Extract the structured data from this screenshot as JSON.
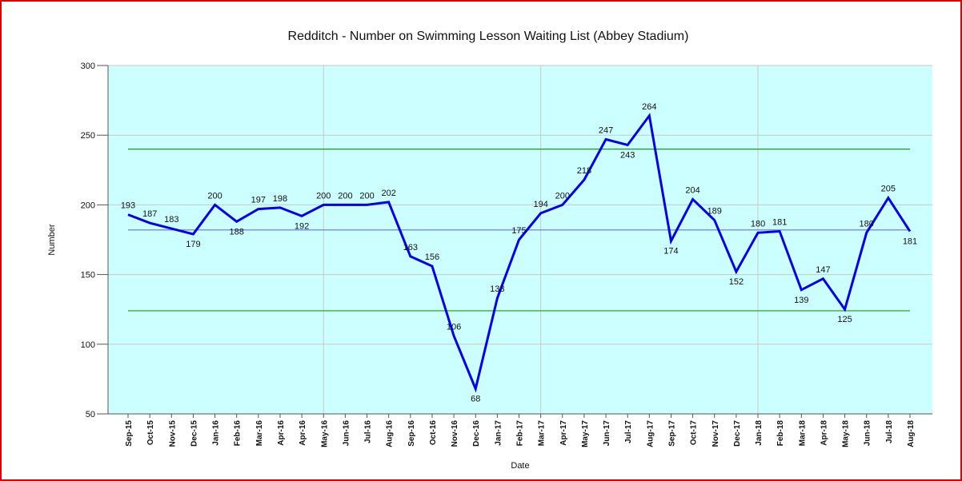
{
  "chart_data": {
    "type": "line",
    "title": "Redditch - Number on Swimming Lesson Waiting List (Abbey Stadium)",
    "xlabel": "Date",
    "ylabel": "Number",
    "categories": [
      "Sep-15",
      "Oct-15",
      "Nov-15",
      "Dec-15",
      "Jan-16",
      "Feb-16",
      "Mar-16",
      "Apr-16",
      "Apr-16",
      "May-16",
      "Jun-16",
      "Jul-16",
      "Aug-16",
      "Sep-16",
      "Oct-16",
      "Nov-16",
      "Dec-16",
      "Jan-17",
      "Feb-17",
      "Mar-17",
      "Apr-17",
      "May-17",
      "Jun-17",
      "Jul-17",
      "Aug-17",
      "Sep-17",
      "Oct-17",
      "Nov-17",
      "Dec-17",
      "Jan-18",
      "Feb-18",
      "Mar-18",
      "Apr-18",
      "May-18",
      "Jun-18",
      "Jul-18",
      "Aug-18"
    ],
    "series": [
      {
        "color": "#0000ee",
        "values": [
          193,
          187,
          183,
          179,
          200,
          188,
          197,
          198,
          192,
          200,
          200,
          200,
          202,
          163,
          156,
          106,
          68,
          133,
          175,
          194,
          200,
          218,
          247,
          243,
          264,
          174,
          204,
          189,
          152,
          180,
          181,
          139,
          147,
          125,
          180,
          205,
          181
        ]
      }
    ],
    "reference_lines": [
      {
        "value": 182,
        "color": "#6a6aff"
      },
      {
        "value": 240,
        "color": "#1a9a1a"
      },
      {
        "value": 124,
        "color": "#1a9a1a"
      }
    ],
    "ylim": [
      50,
      300
    ],
    "yticks": [
      50,
      100,
      150,
      200,
      250,
      300
    ],
    "xgrid": [
      "May-16",
      "Mar-17",
      "Jan-18"
    ],
    "grid": true,
    "plot_background": "#ccffff"
  }
}
